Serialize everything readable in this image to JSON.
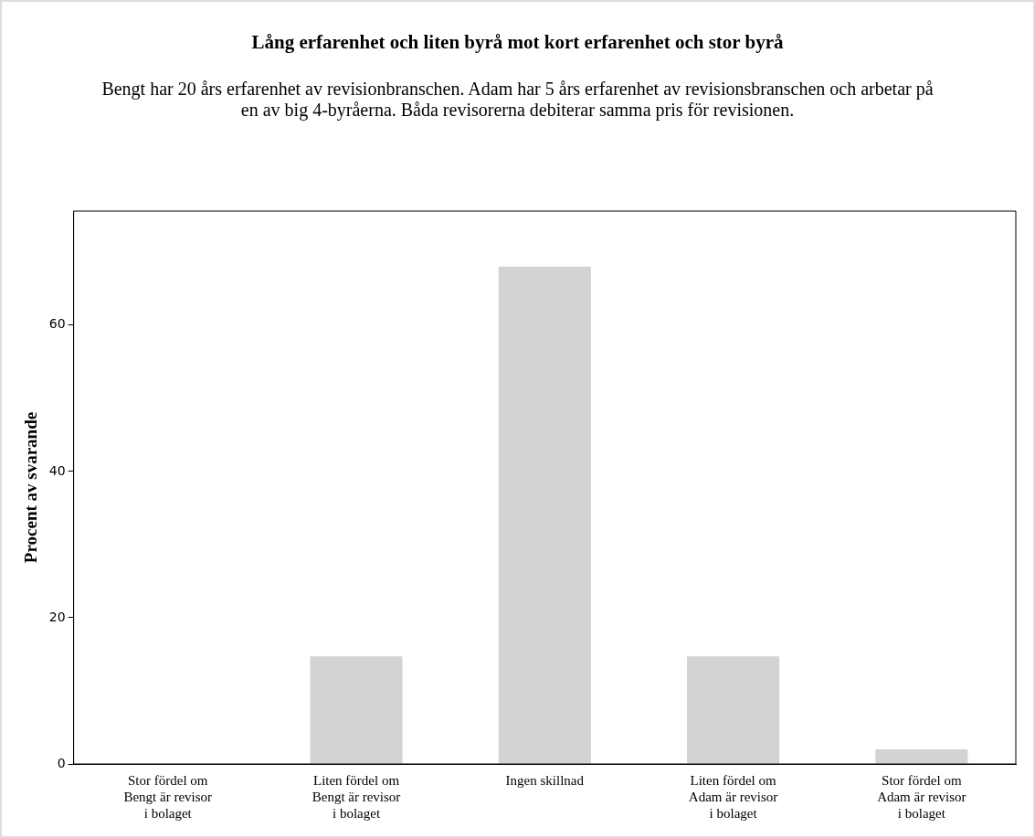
{
  "chart_data": {
    "type": "bar",
    "title": "Lång erfarenhet och liten byrå mot kort erfarenhet och stor byrå",
    "subtitle": "Bengt har 20 års erfarenhet av revisionbranschen. Adam har 5 års erfarenhet av revisionsbranschen och arbetar på en av big 4-byråerna. Båda revisorerna debiterar samma pris för revisionen.",
    "categories": [
      "Stor fördel om Bengt är revisor i bolaget",
      "Liten fördel om Bengt är revisor i bolaget",
      "Ingen skillnad",
      "Liten fördel om Adam är revisor i bolaget",
      "Stor fördel om Adam är revisor i bolaget"
    ],
    "values": [
      0,
      14.7,
      68,
      14.7,
      2
    ],
    "color": "#d3d3d3",
    "ylabel": "Procent av svarande",
    "ylim": [
      0,
      75.6
    ],
    "yticks": [
      0,
      20,
      40,
      60
    ],
    "grid": false,
    "legend": false
  }
}
